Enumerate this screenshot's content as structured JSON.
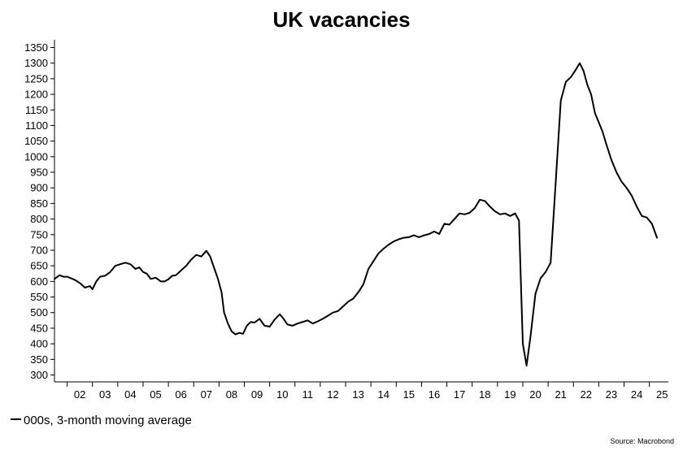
{
  "chart_data": {
    "type": "line",
    "title": "UK vacancies",
    "xlabel": "",
    "ylabel": "",
    "ylim": [
      300,
      1350
    ],
    "yticks": [
      300,
      350,
      400,
      450,
      500,
      550,
      600,
      650,
      700,
      750,
      800,
      850,
      900,
      950,
      1000,
      1050,
      1100,
      1150,
      1200,
      1250,
      1300,
      1350
    ],
    "xlim": [
      2001.5,
      2025.75
    ],
    "xtick_labels": [
      "02",
      "03",
      "04",
      "05",
      "06",
      "07",
      "08",
      "09",
      "10",
      "11",
      "12",
      "13",
      "14",
      "15",
      "16",
      "17",
      "18",
      "19",
      "20",
      "21",
      "22",
      "23",
      "24",
      "25"
    ],
    "legend_position": "bottom-left",
    "series": [
      {
        "name": "000s, 3-month moving average",
        "color": "#000000",
        "x": [
          2001.5,
          2001.7,
          2001.85,
          2002.0,
          2002.1,
          2002.3,
          2002.5,
          2002.7,
          2002.9,
          2003.0,
          2003.15,
          2003.3,
          2003.5,
          2003.7,
          2003.9,
          2004.1,
          2004.3,
          2004.5,
          2004.7,
          2004.85,
          2005.0,
          2005.15,
          2005.3,
          2005.5,
          2005.7,
          2005.85,
          2006.0,
          2006.15,
          2006.3,
          2006.5,
          2006.7,
          2006.9,
          2007.1,
          2007.3,
          2007.5,
          2007.65,
          2007.8,
          2007.95,
          2008.1,
          2008.2,
          2008.35,
          2008.5,
          2008.65,
          2008.8,
          2008.95,
          2009.1,
          2009.25,
          2009.4,
          2009.6,
          2009.8,
          2010.0,
          2010.2,
          2010.4,
          2010.55,
          2010.7,
          2010.9,
          2011.1,
          2011.3,
          2011.5,
          2011.7,
          2011.9,
          2012.1,
          2012.3,
          2012.5,
          2012.7,
          2012.9,
          2013.1,
          2013.3,
          2013.5,
          2013.7,
          2013.9,
          2014.1,
          2014.3,
          2014.5,
          2014.7,
          2014.9,
          2015.1,
          2015.3,
          2015.5,
          2015.7,
          2015.9,
          2016.1,
          2016.3,
          2016.5,
          2016.7,
          2016.9,
          2017.1,
          2017.3,
          2017.5,
          2017.7,
          2017.9,
          2018.1,
          2018.3,
          2018.5,
          2018.7,
          2018.9,
          2019.1,
          2019.3,
          2019.5,
          2019.7,
          2019.85,
          2020.0,
          2020.15,
          2020.3,
          2020.5,
          2020.7,
          2020.9,
          2021.1,
          2021.3,
          2021.5,
          2021.7,
          2021.9,
          2022.1,
          2022.25,
          2022.4,
          2022.55,
          2022.7,
          2022.85,
          2023.0,
          2023.15,
          2023.3,
          2023.5,
          2023.7,
          2023.9,
          2024.1,
          2024.3,
          2024.5,
          2024.7,
          2024.9,
          2025.1,
          2025.3
        ],
        "y": [
          608,
          620,
          615,
          615,
          612,
          605,
          595,
          580,
          585,
          575,
          600,
          615,
          618,
          630,
          650,
          655,
          660,
          655,
          640,
          645,
          630,
          625,
          608,
          612,
          600,
          600,
          607,
          618,
          620,
          635,
          650,
          670,
          685,
          680,
          698,
          680,
          645,
          610,
          565,
          500,
          465,
          440,
          430,
          435,
          432,
          458,
          470,
          468,
          480,
          458,
          455,
          478,
          495,
          480,
          462,
          458,
          465,
          470,
          475,
          465,
          472,
          480,
          490,
          500,
          505,
          520,
          535,
          545,
          565,
          590,
          640,
          665,
          690,
          705,
          718,
          728,
          735,
          740,
          742,
          748,
          742,
          748,
          752,
          760,
          752,
          785,
          782,
          800,
          818,
          815,
          820,
          835,
          862,
          858,
          840,
          825,
          815,
          818,
          810,
          818,
          795,
          400,
          330,
          420,
          560,
          610,
          630,
          660,
          920,
          1180,
          1240,
          1255,
          1280,
          1300,
          1275,
          1230,
          1200,
          1140,
          1110,
          1080,
          1040,
          990,
          950,
          920,
          900,
          875,
          840,
          810,
          805,
          785,
          740
        ]
      }
    ],
    "legend_label": "000s, 3-month moving average",
    "source": "Source: Macrobond"
  }
}
